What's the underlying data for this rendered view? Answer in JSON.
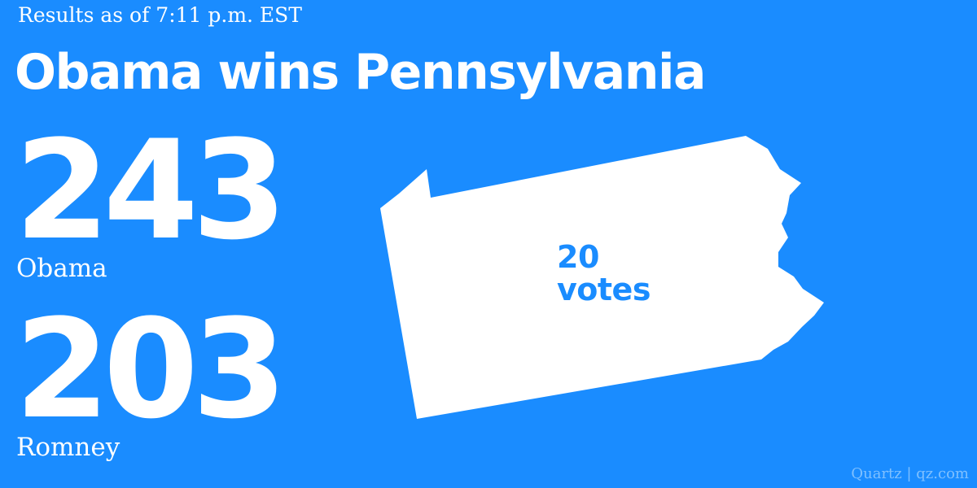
{
  "header": {
    "timestamp": "Results as of 7:11 p.m. EST",
    "headline": "Obama wins Pennsylvania"
  },
  "tally": {
    "obama": {
      "count": "243",
      "name": "Obama"
    },
    "romney": {
      "count": "203",
      "name": "Romney"
    }
  },
  "state": {
    "icon": "pennsylvania-outline",
    "votes_number": "20",
    "votes_word": "votes"
  },
  "footer": {
    "credit": "Quartz | qz.com"
  },
  "colors": {
    "background": "#1a8cff",
    "foreground": "#ffffff",
    "credit_text": "#7fc0ff"
  }
}
